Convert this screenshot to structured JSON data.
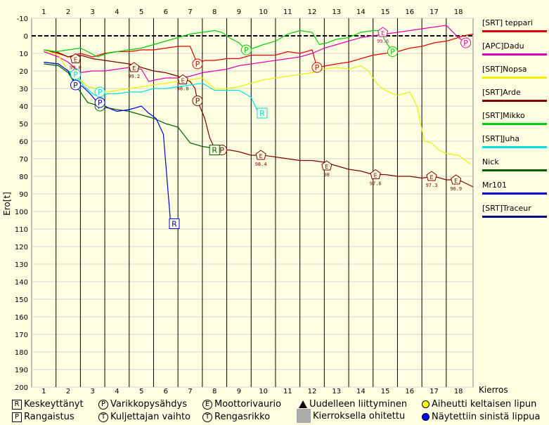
{
  "chart_data": {
    "type": "line",
    "xlabel": "Kierros",
    "ylabel": "Ero[t]",
    "x_ticks": [
      1,
      2,
      3,
      4,
      5,
      6,
      7,
      8,
      9,
      10,
      11,
      12,
      13,
      14,
      15,
      16,
      17,
      18
    ],
    "y_ticks": [
      -10,
      0,
      10,
      20,
      30,
      40,
      50,
      60,
      70,
      80,
      90,
      100,
      110,
      120,
      130,
      140,
      150,
      160,
      170,
      180,
      190,
      200
    ],
    "ylim": [
      -10,
      200
    ],
    "xlim": [
      0.5,
      18.6
    ],
    "grid": true,
    "series": [
      {
        "name": "[SRT] teppari",
        "color": "#e00000",
        "points": [
          [
            1,
            8
          ],
          [
            1.6,
            10
          ],
          [
            2,
            12
          ],
          [
            2.5,
            10
          ],
          [
            3,
            12
          ],
          [
            3.5,
            10
          ],
          [
            4,
            9
          ],
          [
            4.5,
            9
          ],
          [
            5,
            8
          ],
          [
            5.5,
            8
          ],
          [
            6,
            7
          ],
          [
            6.5,
            6
          ],
          [
            7,
            6
          ],
          [
            7.3,
            16
          ],
          [
            7.6,
            14
          ],
          [
            8,
            14
          ],
          [
            8.5,
            13
          ],
          [
            9,
            13
          ],
          [
            9.5,
            11
          ],
          [
            10,
            11
          ],
          [
            10.5,
            11
          ],
          [
            11,
            9
          ],
          [
            11.5,
            10
          ],
          [
            12,
            8
          ],
          [
            12.2,
            18
          ],
          [
            12.6,
            17
          ],
          [
            13,
            16
          ],
          [
            13.5,
            15
          ],
          [
            14,
            13
          ],
          [
            14.5,
            11
          ],
          [
            15,
            10
          ],
          [
            15.5,
            9
          ],
          [
            16,
            7
          ],
          [
            16.5,
            6
          ],
          [
            17,
            4
          ],
          [
            17.5,
            3
          ],
          [
            18,
            1
          ],
          [
            18.2,
            0
          ],
          [
            18.6,
            -1
          ]
        ]
      },
      {
        "name": "[APC]Dadu",
        "color": "#e000b0",
        "points": [
          [
            1,
            9
          ],
          [
            1.6,
            12
          ],
          [
            2,
            15
          ],
          [
            2.5,
            21
          ],
          [
            3,
            20
          ],
          [
            3.5,
            20
          ],
          [
            4,
            19
          ],
          [
            4.5,
            18
          ],
          [
            5,
            19
          ],
          [
            5.3,
            26
          ],
          [
            5.6,
            25
          ],
          [
            6,
            24
          ],
          [
            6.5,
            24
          ],
          [
            7,
            23
          ],
          [
            7.5,
            21
          ],
          [
            8,
            20
          ],
          [
            8.5,
            19
          ],
          [
            9,
            17
          ],
          [
            9.5,
            16
          ],
          [
            10,
            15
          ],
          [
            10.5,
            14
          ],
          [
            11,
            13
          ],
          [
            11.5,
            12
          ],
          [
            12,
            10
          ],
          [
            12.5,
            7
          ],
          [
            13,
            5
          ],
          [
            13.5,
            3
          ],
          [
            14,
            1
          ],
          [
            14.5,
            0
          ],
          [
            15,
            -1
          ],
          [
            15.5,
            -2
          ],
          [
            16,
            -3
          ],
          [
            16.5,
            -4
          ],
          [
            17,
            -5
          ],
          [
            17.5,
            -6
          ],
          [
            18,
            1
          ],
          [
            18.3,
            4
          ]
        ]
      },
      {
        "name": "[SRT]Nopsa",
        "color": "#f0f000",
        "points": [
          [
            1,
            8
          ],
          [
            1.6,
            11
          ],
          [
            2,
            20
          ],
          [
            2.4,
            24
          ],
          [
            2.8,
            29
          ],
          [
            3.2,
            30
          ],
          [
            3.6,
            32
          ],
          [
            4,
            31
          ],
          [
            4.5,
            30
          ],
          [
            5,
            29
          ],
          [
            5.5,
            28
          ],
          [
            6,
            27
          ],
          [
            6.5,
            26
          ],
          [
            7,
            25
          ],
          [
            7.5,
            24
          ],
          [
            8,
            30
          ],
          [
            8.5,
            30
          ],
          [
            9,
            29
          ],
          [
            9.5,
            27
          ],
          [
            10,
            25
          ],
          [
            10.5,
            24
          ],
          [
            11,
            23
          ],
          [
            11.5,
            22
          ],
          [
            12,
            21
          ],
          [
            12.5,
            19
          ],
          [
            13,
            18
          ],
          [
            13.5,
            19
          ],
          [
            14,
            17
          ],
          [
            14.3,
            20
          ],
          [
            14.7,
            28
          ],
          [
            15,
            31
          ],
          [
            15.5,
            34
          ],
          [
            16,
            32
          ],
          [
            16.3,
            40
          ],
          [
            16.6,
            60
          ],
          [
            16.9,
            61
          ],
          [
            17.2,
            65
          ],
          [
            17.5,
            67
          ],
          [
            18,
            68
          ],
          [
            18.5,
            73
          ]
        ]
      },
      {
        "name": "[SRT]Arde",
        "color": "#800000",
        "points": [
          [
            1,
            8
          ],
          [
            1.5,
            9
          ],
          [
            2,
            12
          ],
          [
            2.5,
            11
          ],
          [
            3,
            13
          ],
          [
            3.5,
            14
          ],
          [
            4,
            15
          ],
          [
            4.5,
            16
          ],
          [
            5,
            18
          ],
          [
            5.5,
            20
          ],
          [
            6,
            21
          ],
          [
            6.5,
            23
          ],
          [
            7,
            26
          ],
          [
            7.2,
            30
          ],
          [
            7.3,
            37
          ],
          [
            7.6,
            47
          ],
          [
            7.8,
            58
          ],
          [
            8,
            64
          ],
          [
            8.3,
            65
          ],
          [
            8.6,
            65
          ],
          [
            9,
            66
          ],
          [
            9.5,
            68
          ],
          [
            10,
            68
          ],
          [
            10.5,
            69
          ],
          [
            11,
            70
          ],
          [
            11.5,
            71
          ],
          [
            12,
            71
          ],
          [
            12.5,
            72
          ],
          [
            13,
            74
          ],
          [
            13.5,
            76
          ],
          [
            14,
            77
          ],
          [
            14.5,
            79
          ],
          [
            15,
            79
          ],
          [
            15.5,
            80
          ],
          [
            16,
            80
          ],
          [
            16.5,
            81
          ],
          [
            17,
            80
          ],
          [
            17.5,
            82
          ],
          [
            18,
            82
          ],
          [
            18.6,
            86
          ]
        ]
      },
      {
        "name": "[SRT]Mikko",
        "color": "#00d000",
        "points": [
          [
            1,
            8
          ],
          [
            1.5,
            9
          ],
          [
            2,
            8
          ],
          [
            2.5,
            7
          ],
          [
            2.8,
            9
          ],
          [
            3.2,
            12
          ],
          [
            3.6,
            10
          ],
          [
            4,
            9
          ],
          [
            4.5,
            8
          ],
          [
            5,
            7
          ],
          [
            5.5,
            5
          ],
          [
            6,
            3
          ],
          [
            6.5,
            1
          ],
          [
            7,
            -1
          ],
          [
            7.5,
            -2
          ],
          [
            8,
            -3
          ],
          [
            8.3,
            -2
          ],
          [
            8.6,
            1
          ],
          [
            9,
            4
          ],
          [
            9.3,
            8
          ],
          [
            9.6,
            7
          ],
          [
            10,
            5
          ],
          [
            10.5,
            3
          ],
          [
            11,
            -1
          ],
          [
            11.5,
            -3
          ],
          [
            12,
            -2
          ],
          [
            12.3,
            5
          ],
          [
            12.6,
            4
          ],
          [
            13,
            2
          ],
          [
            13.5,
            1
          ],
          [
            14,
            -2
          ],
          [
            14.5,
            -3
          ],
          [
            14.8,
            -3
          ],
          [
            15,
            3
          ],
          [
            15.3,
            9
          ],
          [
            15.5,
            8
          ]
        ]
      },
      {
        "name": "[SRT]Juha",
        "color": "#00e0e0",
        "points": [
          [
            1,
            15
          ],
          [
            1.6,
            16
          ],
          [
            2,
            20
          ],
          [
            2.3,
            22
          ],
          [
            2.6,
            28
          ],
          [
            3,
            33
          ],
          [
            3.3,
            35
          ],
          [
            3.6,
            33
          ],
          [
            4,
            33
          ],
          [
            4.5,
            32
          ],
          [
            5,
            32
          ],
          [
            5.5,
            30
          ],
          [
            6,
            30
          ],
          [
            6.5,
            29
          ],
          [
            7,
            28
          ],
          [
            7.5,
            27
          ],
          [
            8,
            31
          ],
          [
            8.5,
            31
          ],
          [
            9,
            31
          ],
          [
            9.5,
            35
          ],
          [
            9.8,
            44
          ],
          [
            10,
            44
          ]
        ]
      },
      {
        "name": "Nick",
        "color": "#006000",
        "points": [
          [
            1,
            16
          ],
          [
            1.6,
            17
          ],
          [
            2,
            21
          ],
          [
            2.4,
            30
          ],
          [
            2.8,
            38
          ],
          [
            3.3,
            40
          ],
          [
            3.6,
            41
          ],
          [
            4,
            42
          ],
          [
            4.5,
            43
          ],
          [
            5,
            45
          ],
          [
            5.5,
            47
          ],
          [
            6,
            50
          ],
          [
            6.5,
            52
          ],
          [
            7,
            61
          ],
          [
            7.5,
            63
          ],
          [
            8,
            64
          ],
          [
            8.3,
            65
          ]
        ]
      },
      {
        "name": "Mr101",
        "color": "#0000e0",
        "points": [
          [
            1,
            15
          ],
          [
            1.6,
            16
          ],
          [
            2,
            20
          ],
          [
            2.3,
            27
          ],
          [
            2.6,
            29
          ],
          [
            2.9,
            33
          ],
          [
            3.2,
            38
          ],
          [
            3.5,
            40
          ],
          [
            3.8,
            42
          ],
          [
            4,
            43
          ],
          [
            4.5,
            42
          ],
          [
            5,
            40
          ],
          [
            5.3,
            44
          ],
          [
            5.6,
            47
          ],
          [
            5.9,
            56
          ],
          [
            6.2,
            107
          ],
          [
            6.5,
            107
          ]
        ]
      },
      {
        "name": "[SRT]Traceur",
        "color": "#000080",
        "points": []
      }
    ],
    "markers": [
      {
        "type": "E",
        "x": 2.3,
        "y": 13,
        "color": "#800000",
        "label": "99.0"
      },
      {
        "type": "E",
        "x": 4.7,
        "y": 18,
        "color": "#800000",
        "label": "99.2"
      },
      {
        "type": "E",
        "x": 6.7,
        "y": 25,
        "color": "#800000",
        "label": "98.8"
      },
      {
        "type": "P",
        "x": 7.3,
        "y": 37,
        "color": "#800000",
        "label": ""
      },
      {
        "type": "P",
        "x": 7.3,
        "y": 16,
        "color": "#e00000",
        "label": ""
      },
      {
        "type": "P",
        "x": 8.3,
        "y": 65,
        "color": "#800000",
        "label": ""
      },
      {
        "type": "R",
        "x": 8,
        "y": 65,
        "color": "#006000",
        "label": ""
      },
      {
        "type": "E",
        "x": 9.9,
        "y": 68,
        "color": "#800000",
        "label": "98.4"
      },
      {
        "type": "E",
        "x": 12.6,
        "y": 74,
        "color": "#800000",
        "label": "98"
      },
      {
        "type": "E",
        "x": 14.6,
        "y": 79,
        "color": "#800000",
        "label": "97.6"
      },
      {
        "type": "E",
        "x": 16.9,
        "y": 80,
        "color": "#800000",
        "label": "97.3"
      },
      {
        "type": "E",
        "x": 17.9,
        "y": 82,
        "color": "#800000",
        "label": "96.9"
      },
      {
        "type": "E",
        "x": 14.9,
        "y": -2,
        "color": "#e000b0",
        "label": "99.6"
      },
      {
        "type": "P",
        "x": 18.3,
        "y": 4,
        "color": "#e000b0",
        "label": ""
      },
      {
        "type": "P",
        "x": 12.2,
        "y": 18,
        "color": "#e00000",
        "label": ""
      },
      {
        "type": "P",
        "x": 9.3,
        "y": 8,
        "color": "#00d000",
        "label": ""
      },
      {
        "type": "P",
        "x": 15.3,
        "y": 9,
        "color": "#00d000",
        "label": ""
      },
      {
        "type": "P",
        "x": 2.3,
        "y": 22,
        "color": "#00e0e0",
        "label": ""
      },
      {
        "type": "P",
        "x": 3.3,
        "y": 32,
        "color": "#00e0e0",
        "label": ""
      },
      {
        "type": "R",
        "x": 9.95,
        "y": 44,
        "color": "#00e0e0",
        "label": ""
      },
      {
        "type": "P",
        "x": 3.3,
        "y": 40,
        "color": "#006000",
        "label": ""
      },
      {
        "type": "P",
        "x": 2.3,
        "y": 28,
        "color": "#0000e0",
        "label": ""
      },
      {
        "type": "P",
        "x": 3.3,
        "y": 38,
        "color": "#0000e0",
        "label": ""
      },
      {
        "type": "R",
        "x": 6.35,
        "y": 107,
        "color": "#0000e0",
        "label": ""
      }
    ]
  },
  "legend_bottom": [
    {
      "icon": "R",
      "label": "Keskeyttänyt"
    },
    {
      "icon": "P",
      "label": "Varikkopysähdys"
    },
    {
      "icon": "E",
      "label": "Moottorivaurio"
    },
    {
      "icon": "triangle",
      "label": "Uudelleen liittyminen"
    },
    {
      "icon": "yellow-dot",
      "label": "Aiheutti keltaisen lipun"
    },
    {
      "icon": "P",
      "label": "Rangaistus"
    },
    {
      "icon": "T",
      "label": "Kuljettajan vaihto"
    },
    {
      "icon": "T",
      "label": "Rengasrikko"
    },
    {
      "icon": "gray",
      "label": "Kierroksella ohitettu"
    },
    {
      "icon": "blue-dot",
      "label": "Näytettiin sinistä lippua"
    }
  ],
  "colors": {
    "background": "#ffffe1",
    "grid": "#d4d4d4",
    "lap_line": "#000000",
    "yellow": "#ffff00",
    "blue": "#0000ff",
    "gray": "#aaaaaa"
  }
}
